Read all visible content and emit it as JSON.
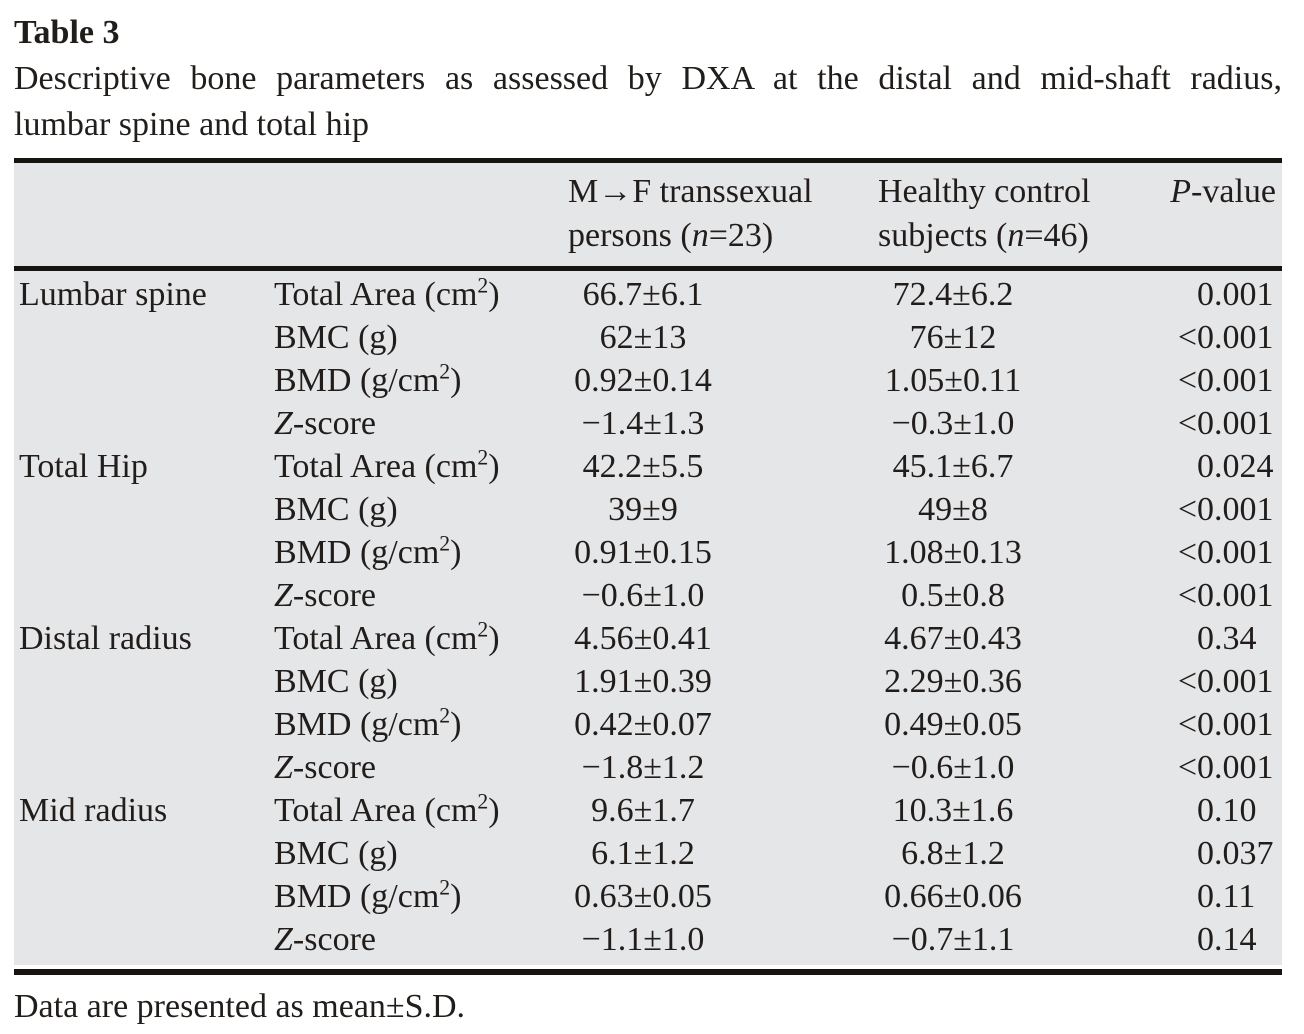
{
  "title": "Table 3",
  "caption_line1": "Descriptive bone parameters as assessed by DXA at the distal and mid-shaft radius,",
  "caption_line2": "lumbar spine and total hip",
  "footnote": "Data are presented as mean±S.D.",
  "colors": {
    "table_bg": "#e5e6e7",
    "rule": "#17130f",
    "text": "#211d1a",
    "page_bg": "#ffffff"
  },
  "table": {
    "header": {
      "col3_line1": "M→F transsexual",
      "col3_line2": "persons (n=23)",
      "col4_line1": "Healthy control",
      "col4_line2": "subjects (n=46)",
      "col5": "P-value"
    },
    "sections": [
      {
        "region": "Lumbar spine",
        "rows": [
          {
            "parameter": "Total Area (cm²)",
            "mf": "66.7±6.1",
            "control": "72.4±6.2",
            "p": "0.001"
          },
          {
            "parameter": "BMC (g)",
            "mf": "62±13",
            "control": "76±12",
            "p": "<0.001"
          },
          {
            "parameter": "BMD (g/cm²)",
            "mf": "0.92±0.14",
            "control": "1.05±0.11",
            "p": "<0.001"
          },
          {
            "parameter": "Z-score",
            "mf": "−1.4±1.3",
            "control": "−0.3±1.0",
            "p": "<0.001"
          }
        ]
      },
      {
        "region": "Total Hip",
        "rows": [
          {
            "parameter": "Total Area (cm²)",
            "mf": "42.2±5.5",
            "control": "45.1±6.7",
            "p": "0.024"
          },
          {
            "parameter": "BMC (g)",
            "mf": "39±9",
            "control": "49±8",
            "p": "<0.001"
          },
          {
            "parameter": "BMD (g/cm²)",
            "mf": "0.91±0.15",
            "control": "1.08±0.13",
            "p": "<0.001"
          },
          {
            "parameter": "Z-score",
            "mf": "−0.6±1.0",
            "control": "0.5±0.8",
            "p": "<0.001"
          }
        ]
      },
      {
        "region": "Distal radius",
        "rows": [
          {
            "parameter": "Total Area (cm²)",
            "mf": "4.56±0.41",
            "control": "4.67±0.43",
            "p": "0.34"
          },
          {
            "parameter": "BMC (g)",
            "mf": "1.91±0.39",
            "control": "2.29±0.36",
            "p": "<0.001"
          },
          {
            "parameter": "BMD (g/cm²)",
            "mf": "0.42±0.07",
            "control": "0.49±0.05",
            "p": "<0.001"
          },
          {
            "parameter": "Z-score",
            "mf": "−1.8±1.2",
            "control": "−0.6±1.0",
            "p": "<0.001"
          }
        ]
      },
      {
        "region": "Mid radius",
        "rows": [
          {
            "parameter": "Total Area (cm²)",
            "mf": "9.6±1.7",
            "control": "10.3±1.6",
            "p": "0.10"
          },
          {
            "parameter": "BMC (g)",
            "mf": "6.1±1.2",
            "control": "6.8±1.2",
            "p": "0.037"
          },
          {
            "parameter": "BMD (g/cm²)",
            "mf": "0.63±0.05",
            "control": "0.66±0.06",
            "p": "0.11"
          },
          {
            "parameter": "Z-score",
            "mf": "−1.1±1.0",
            "control": "−0.7±1.1",
            "p": "0.14"
          }
        ]
      }
    ]
  }
}
